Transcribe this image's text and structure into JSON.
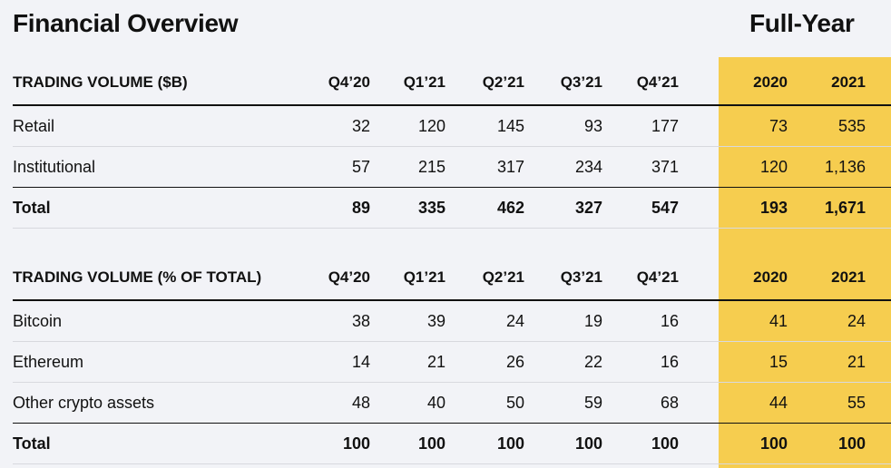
{
  "header": {
    "title": "Financial Overview",
    "full_year_title": "Full-Year"
  },
  "colors": {
    "background": "#f2f3f7",
    "highlight": "#f6cd4f",
    "text": "#111111",
    "rule": "#d8d9de"
  },
  "table1": {
    "title": "TRADING VOLUME ($B)",
    "columns": [
      "Q4’20",
      "Q1’21",
      "Q2’21",
      "Q3’21",
      "Q4’21",
      "2020",
      "2021"
    ],
    "rows": [
      {
        "label": "Retail",
        "values": [
          "32",
          "120",
          "145",
          "93",
          "177",
          "73",
          "535"
        ]
      },
      {
        "label": "Institutional",
        "values": [
          "57",
          "215",
          "317",
          "234",
          "371",
          "120",
          "1,136"
        ]
      },
      {
        "label": "Total",
        "values": [
          "89",
          "335",
          "462",
          "327",
          "547",
          "193",
          "1,671"
        ]
      }
    ]
  },
  "table2": {
    "title": "TRADING VOLUME (% OF TOTAL)",
    "columns": [
      "Q4’20",
      "Q1’21",
      "Q2’21",
      "Q3’21",
      "Q4’21",
      "2020",
      "2021"
    ],
    "rows": [
      {
        "label": "Bitcoin",
        "values": [
          "38",
          "39",
          "24",
          "19",
          "16",
          "41",
          "24"
        ]
      },
      {
        "label": "Ethereum",
        "values": [
          "14",
          "21",
          "26",
          "22",
          "16",
          "15",
          "21"
        ]
      },
      {
        "label": "Other crypto assets",
        "values": [
          "48",
          "40",
          "50",
          "59",
          "68",
          "44",
          "55"
        ]
      },
      {
        "label": "Total",
        "values": [
          "100",
          "100",
          "100",
          "100",
          "100",
          "100",
          "100"
        ]
      }
    ]
  }
}
